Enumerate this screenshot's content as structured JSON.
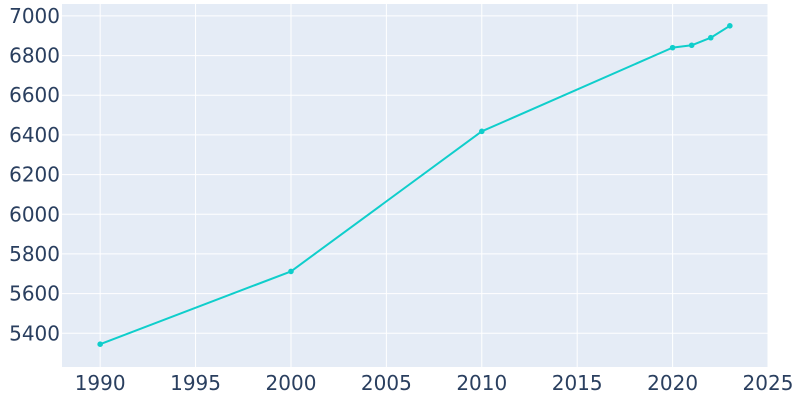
{
  "chart_data": {
    "type": "line",
    "title": "",
    "xlabel": "",
    "ylabel": "",
    "xlim": [
      1988,
      2025
    ],
    "ylim": [
      5230,
      7060
    ],
    "x_ticks": [
      1990,
      1995,
      2000,
      2005,
      2010,
      2015,
      2020,
      2025
    ],
    "y_ticks": [
      5400,
      5600,
      5800,
      6000,
      6200,
      6400,
      6600,
      6800,
      7000
    ],
    "grid": true,
    "legend": "none",
    "series": [
      {
        "color": "#0fcecb",
        "points": [
          {
            "x": 1990,
            "y": 5345
          },
          {
            "x": 2000,
            "y": 5712
          },
          {
            "x": 2010,
            "y": 6418
          },
          {
            "x": 2020,
            "y": 6840
          },
          {
            "x": 2021,
            "y": 6852
          },
          {
            "x": 2022,
            "y": 6890
          },
          {
            "x": 2023,
            "y": 6950
          }
        ]
      }
    ],
    "colors": {
      "plot_background": "#e5ecf6",
      "grid": "#ffffff",
      "tick_text": "#2a3f5f"
    }
  }
}
